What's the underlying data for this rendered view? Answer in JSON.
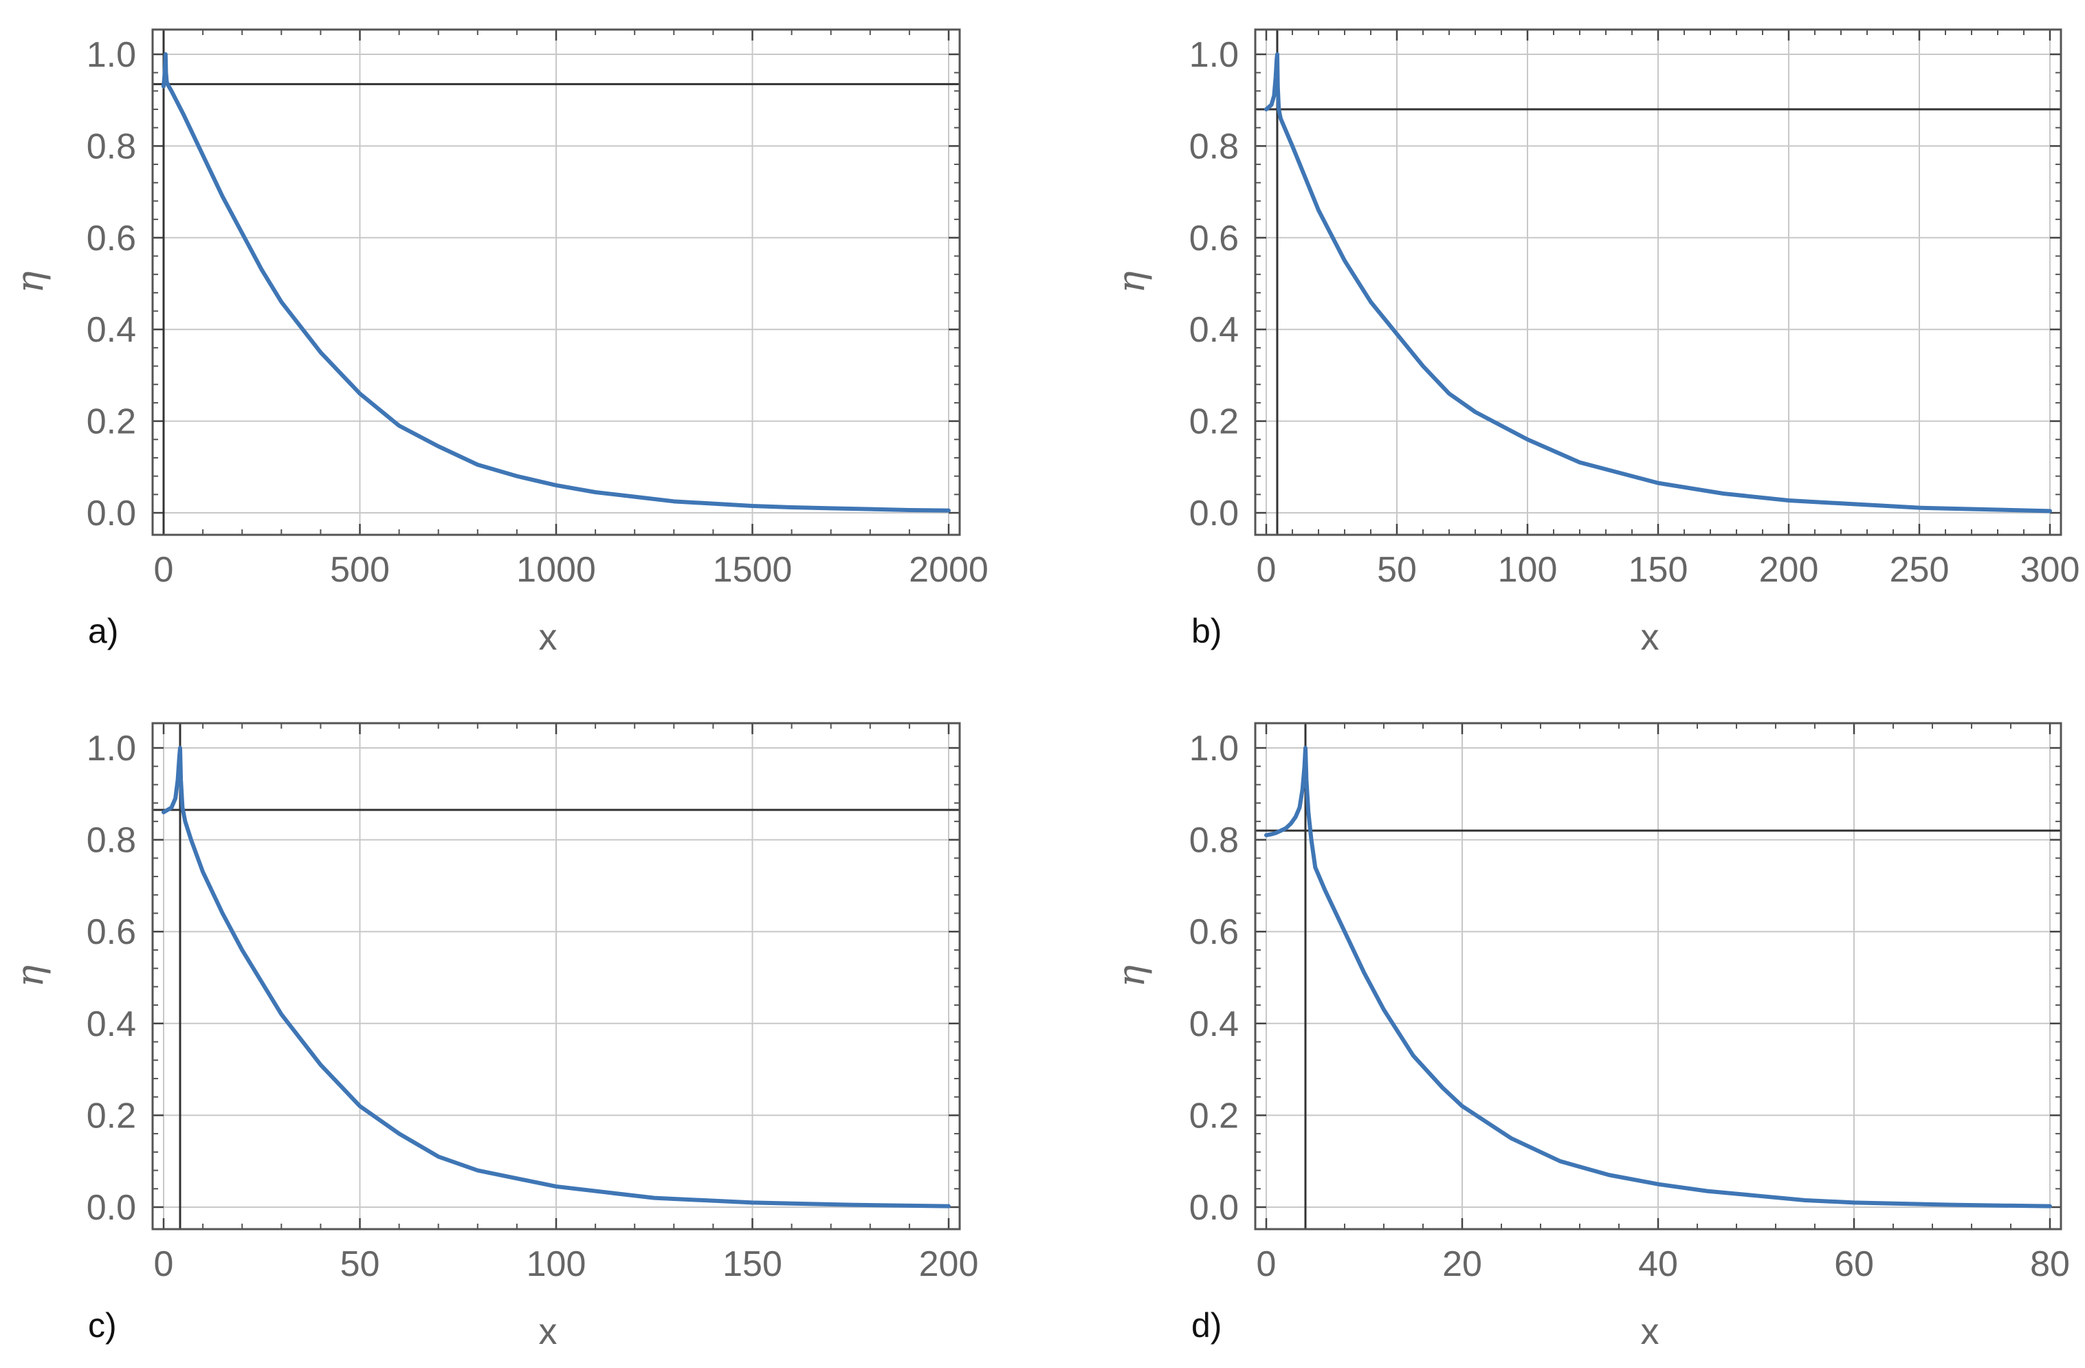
{
  "chart_data": [
    {
      "panel": "a)",
      "type": "line",
      "xlabel": "x",
      "ylabel": "η",
      "xlim": [
        0,
        2000
      ],
      "ylim": [
        0,
        1.0
      ],
      "xticks": [
        0,
        500,
        1000,
        1500,
        2000
      ],
      "xtick_labels": [
        "0",
        "500",
        "1000",
        "1500",
        "2000"
      ],
      "yticks": [
        0.0,
        0.2,
        0.4,
        0.6,
        0.8,
        1.0
      ],
      "ytick_labels": [
        "0.0",
        "0.2",
        "0.4",
        "0.6",
        "0.8",
        "1.0"
      ],
      "grid": true,
      "hline": 0.935,
      "vline": 0,
      "series": [
        {
          "color": "#3f76b5",
          "x": [
            0,
            2,
            4,
            5,
            6,
            8,
            10,
            20,
            50,
            100,
            150,
            200,
            250,
            300,
            400,
            500,
            600,
            700,
            800,
            900,
            1000,
            1100,
            1200,
            1300,
            1400,
            1500,
            1600,
            1700,
            1800,
            1900,
            2000
          ],
          "y": [
            0.93,
            0.95,
            0.98,
            1.0,
            0.96,
            0.94,
            0.935,
            0.92,
            0.87,
            0.78,
            0.69,
            0.61,
            0.53,
            0.46,
            0.35,
            0.26,
            0.19,
            0.145,
            0.105,
            0.08,
            0.06,
            0.045,
            0.035,
            0.025,
            0.02,
            0.015,
            0.012,
            0.01,
            0.008,
            0.006,
            0.005
          ]
        }
      ]
    },
    {
      "panel": "b)",
      "type": "line",
      "xlabel": "x",
      "ylabel": "η",
      "xlim": [
        0,
        300
      ],
      "ylim": [
        0,
        1.0
      ],
      "xticks": [
        0,
        50,
        100,
        150,
        200,
        250,
        300
      ],
      "xtick_labels": [
        "0",
        "50",
        "100",
        "150",
        "200",
        "250",
        "300"
      ],
      "yticks": [
        0.0,
        0.2,
        0.4,
        0.6,
        0.8,
        1.0
      ],
      "ytick_labels": [
        "0.0",
        "0.2",
        "0.4",
        "0.6",
        "0.8",
        "1.0"
      ],
      "grid": true,
      "hline": 0.88,
      "vline": 4.2,
      "series": [
        {
          "color": "#3f76b5",
          "x": [
            0,
            1,
            2,
            3,
            3.6,
            4.0,
            4.2,
            4.4,
            4.8,
            5.5,
            7,
            10,
            20,
            30,
            40,
            50,
            60,
            70,
            80,
            100,
            120,
            150,
            175,
            200,
            250,
            300
          ],
          "y": [
            0.88,
            0.885,
            0.89,
            0.91,
            0.95,
            0.99,
            1.0,
            0.93,
            0.88,
            0.86,
            0.84,
            0.8,
            0.66,
            0.55,
            0.46,
            0.39,
            0.32,
            0.26,
            0.22,
            0.16,
            0.11,
            0.065,
            0.042,
            0.027,
            0.011,
            0.004
          ]
        }
      ]
    },
    {
      "panel": "c)",
      "type": "line",
      "xlabel": "x",
      "ylabel": "η",
      "xlim": [
        0,
        200
      ],
      "ylim": [
        0,
        1.0
      ],
      "xticks": [
        0,
        50,
        100,
        150,
        200
      ],
      "xtick_labels": [
        "0",
        "50",
        "100",
        "150",
        "200"
      ],
      "yticks": [
        0.0,
        0.2,
        0.4,
        0.6,
        0.8,
        1.0
      ],
      "ytick_labels": [
        "0.0",
        "0.2",
        "0.4",
        "0.6",
        "0.8",
        "1.0"
      ],
      "grid": true,
      "hline": 0.865,
      "vline": 4.2,
      "series": [
        {
          "color": "#3f76b5",
          "x": [
            0,
            1,
            2,
            3,
            3.6,
            4.0,
            4.2,
            4.4,
            4.8,
            5.5,
            7,
            10,
            15,
            20,
            30,
            40,
            50,
            60,
            70,
            80,
            100,
            125,
            150,
            175,
            200
          ],
          "y": [
            0.86,
            0.865,
            0.87,
            0.89,
            0.93,
            0.98,
            1.0,
            0.93,
            0.87,
            0.84,
            0.8,
            0.73,
            0.64,
            0.56,
            0.42,
            0.31,
            0.22,
            0.16,
            0.11,
            0.08,
            0.045,
            0.02,
            0.01,
            0.005,
            0.002
          ]
        }
      ]
    },
    {
      "panel": "d)",
      "type": "line",
      "xlabel": "x",
      "ylabel": "η",
      "xlim": [
        0,
        80
      ],
      "ylim": [
        0,
        1.0
      ],
      "xticks": [
        0,
        20,
        40,
        60,
        80
      ],
      "xtick_labels": [
        "0",
        "20",
        "40",
        "60",
        "80"
      ],
      "yticks": [
        0.0,
        0.2,
        0.4,
        0.6,
        0.8,
        1.0
      ],
      "ytick_labels": [
        "0.0",
        "0.2",
        "0.4",
        "0.6",
        "0.8",
        "1.0"
      ],
      "grid": true,
      "hline": 0.82,
      "vline": 4.0,
      "series": [
        {
          "color": "#3f76b5",
          "x": [
            0,
            0.5,
            1,
            1.5,
            2,
            2.5,
            3,
            3.4,
            3.7,
            3.9,
            4.0,
            4.1,
            4.3,
            4.6,
            5,
            6,
            8,
            10,
            12,
            15,
            18,
            20,
            25,
            30,
            35,
            40,
            45,
            50,
            55,
            60,
            70,
            80
          ],
          "y": [
            0.81,
            0.812,
            0.815,
            0.82,
            0.825,
            0.835,
            0.85,
            0.87,
            0.91,
            0.96,
            1.0,
            0.93,
            0.86,
            0.8,
            0.74,
            0.69,
            0.6,
            0.51,
            0.43,
            0.33,
            0.26,
            0.22,
            0.15,
            0.1,
            0.07,
            0.05,
            0.035,
            0.025,
            0.015,
            0.01,
            0.005,
            0.002
          ]
        }
      ]
    }
  ]
}
